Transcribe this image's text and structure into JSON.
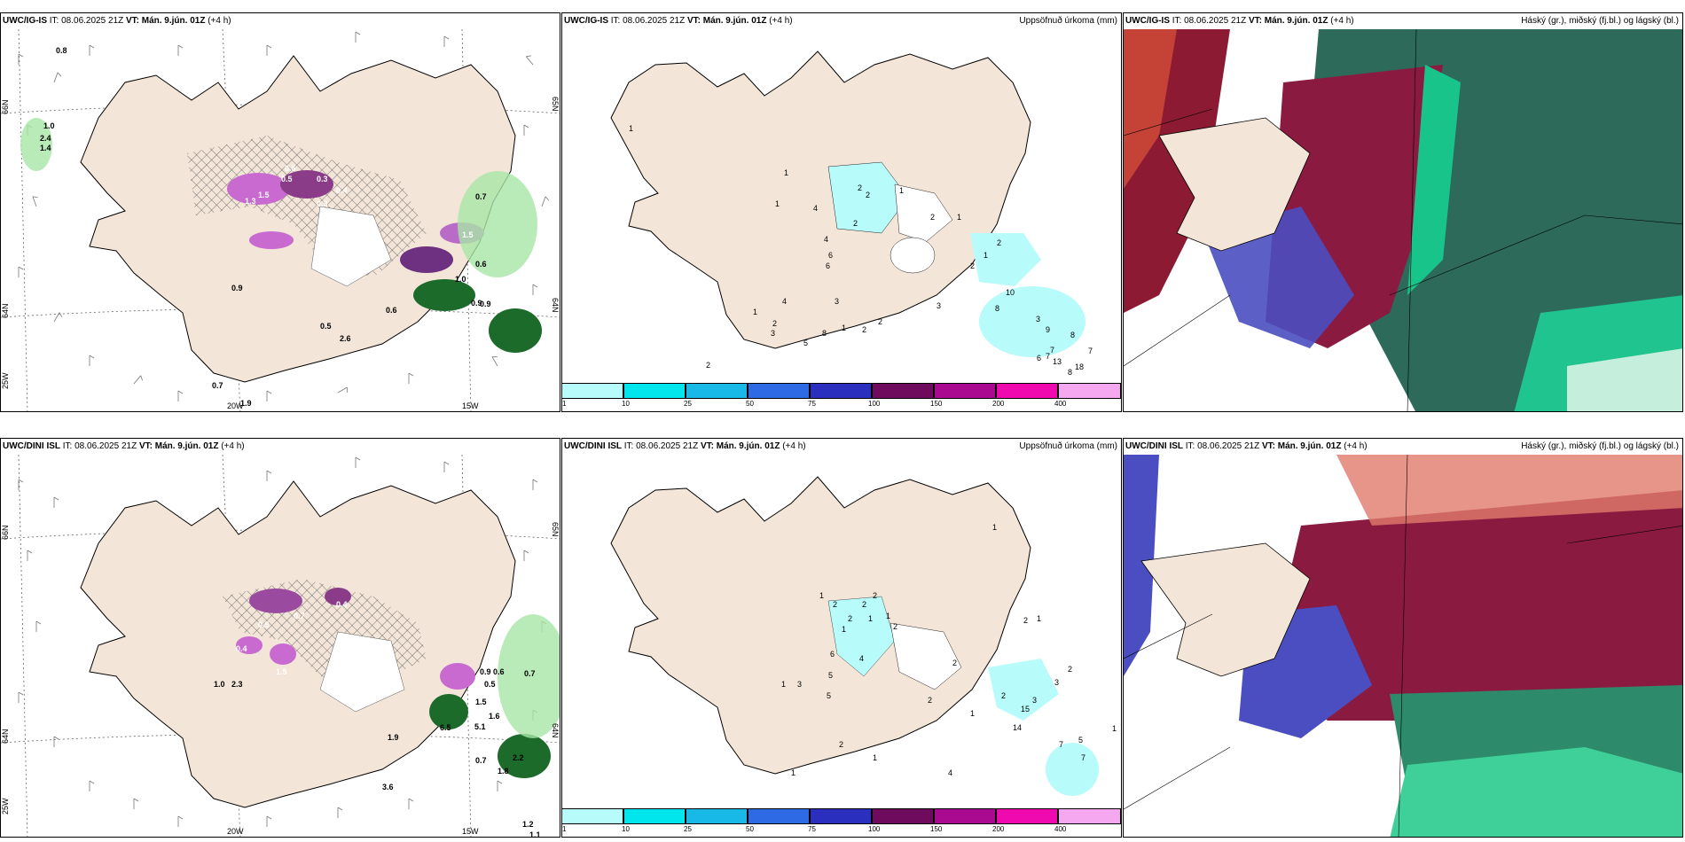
{
  "rows": [
    {
      "model": "UWC/IG-IS",
      "it_label": "IT:",
      "it": "08.06.2025 21Z",
      "vt_label": "VT:",
      "vt": "Mán. 9.jún. 01Z",
      "lead": "(+4 h)"
    },
    {
      "model": "UWC/DINI ISL",
      "it_label": "IT:",
      "it": "08.06.2025 21Z",
      "vt_label": "VT:",
      "vt": "Mán. 9.jún. 01Z",
      "lead": "(+4 h)"
    }
  ],
  "precip_title": "Uppsöfnuð úrkoma (mm)",
  "cloud_title": "Háský (gr.), miðský (fj.bl.) og lágský (bl.)",
  "grid_labels": {
    "lat66": "66N",
    "lat64": "64N",
    "lat65": "65N",
    "lon20": "20W",
    "lon15": "15W",
    "lon25": "25W"
  },
  "colorbar": {
    "ticks": [
      "1",
      "10",
      "25",
      "50",
      "75",
      "100",
      "150",
      "200",
      "400"
    ],
    "colors": [
      "#b8fbfb",
      "#00e6ec",
      "#18b9e6",
      "#2d6ae3",
      "#2a2fbe",
      "#6e0b5c",
      "#aa0a90",
      "#ef0ab0",
      "#f5a8f0"
    ]
  },
  "icons": {
    "wind_barbs": "wind-barb-icon",
    "hatch": "hatch-pattern"
  },
  "top_left_values": [
    "0.8",
    "1.0",
    "2.4",
    "1.4",
    "0.9",
    "1.3",
    "1.5",
    "0.5",
    "0.6",
    "0.3",
    "0.4",
    "0.3",
    "1.0",
    "0.9",
    "0.6",
    "0.5",
    "2.6",
    "0.7",
    "1.9",
    "0.6",
    "0.7",
    "0.9",
    "1.5"
  ],
  "top_mid_values": [
    "1",
    "1",
    "1",
    "4",
    "2",
    "2",
    "1",
    "2",
    "4",
    "6",
    "6",
    "3",
    "4",
    "1",
    "2",
    "3",
    "5",
    "8",
    "1",
    "2",
    "2",
    "2",
    "1",
    "3",
    "2",
    "1",
    "2",
    "10",
    "8",
    "3",
    "9",
    "8",
    "7",
    "7",
    "13",
    "8",
    "18",
    "7",
    "6",
    "2"
  ],
  "bot_left_values": [
    "0.5",
    "0.7",
    "0.4",
    "0.4",
    "1.5",
    "1.0",
    "2.3",
    "0.9",
    "0.6",
    "0.5",
    "0.7",
    "1.6",
    "3.6",
    "1.9",
    "6.5",
    "5.1",
    "0.7",
    "1.8",
    "1.2",
    "1.1",
    "1.5",
    "2.2"
  ],
  "bot_mid_values": [
    "1",
    "2",
    "2",
    "2",
    "2",
    "1",
    "1",
    "1",
    "2",
    "5",
    "6",
    "1",
    "3",
    "4",
    "5",
    "2",
    "1",
    "2",
    "2",
    "3",
    "15",
    "14",
    "5",
    "7",
    "7",
    "1",
    "4",
    "2",
    "1",
    "1",
    "2",
    "1",
    "3",
    "2",
    "1"
  ]
}
